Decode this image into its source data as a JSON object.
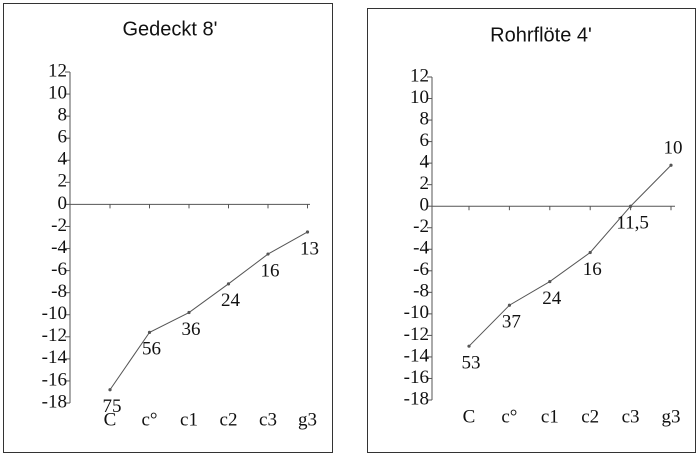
{
  "chart_data": [
    {
      "type": "line",
      "title": "Gedeckt 8'",
      "categories": [
        "C",
        "c°",
        "c1",
        "c2",
        "c3",
        "g3"
      ],
      "series": [
        {
          "color": "#555555",
          "values": [
            -16.8,
            -11.6,
            -9.8,
            -7.2,
            -4.5,
            -2.5
          ],
          "point_labels": [
            "75",
            "56",
            "36",
            "24",
            "16",
            "13"
          ]
        }
      ],
      "ylim": [
        -18,
        12
      ],
      "yticks": [
        -18,
        -16,
        -14,
        -12,
        -10,
        -8,
        -6,
        -4,
        -2,
        0,
        2,
        4,
        6,
        8,
        10,
        12
      ]
    },
    {
      "type": "line",
      "title": "Rohrflöte 4'",
      "categories": [
        "C",
        "c°",
        "c1",
        "c2",
        "c3",
        "g3"
      ],
      "series": [
        {
          "color": "#555555",
          "values": [
            -13,
            -9.2,
            -7,
            -4.3,
            0,
            3.8
          ],
          "point_labels": [
            "53",
            "37",
            "24",
            "16",
            "11,5",
            "10"
          ]
        }
      ],
      "ylim": [
        -18,
        12
      ],
      "yticks": [
        -18,
        -16,
        -14,
        -12,
        -10,
        -8,
        -6,
        -4,
        -2,
        0,
        2,
        4,
        6,
        8,
        10,
        12
      ]
    }
  ]
}
